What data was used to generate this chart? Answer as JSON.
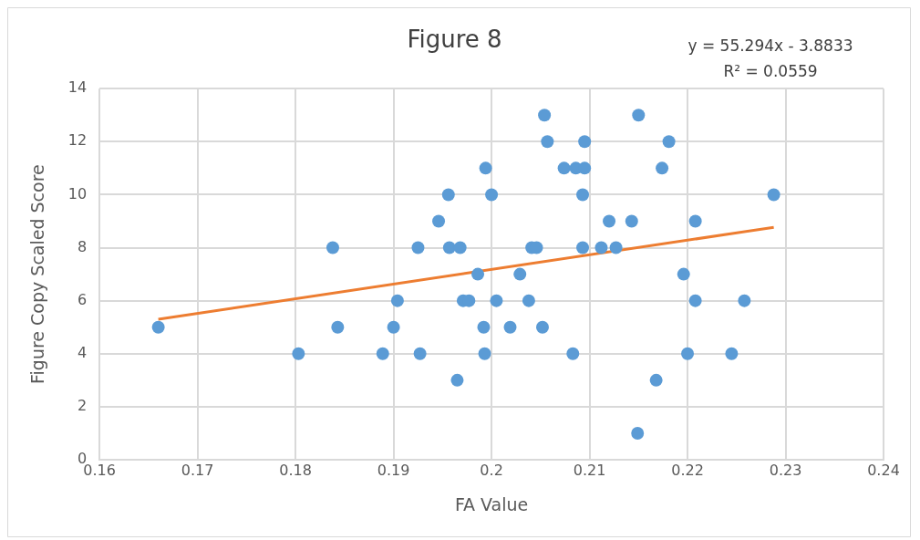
{
  "chart_data": {
    "type": "scatter",
    "title": "Figure 8",
    "xlabel": "FA Value",
    "ylabel": "Figure Copy Scaled Score",
    "xlim": [
      0.16,
      0.24
    ],
    "xticks": [
      0.16,
      0.17,
      0.18,
      0.19,
      0.2,
      0.21,
      0.22,
      0.23,
      0.24
    ],
    "ylim": [
      0,
      14
    ],
    "yticks": [
      0,
      2,
      4,
      6,
      8,
      10,
      12,
      14
    ],
    "grid": true,
    "annotations": [
      "y = 55.294x - 3.8833",
      "R² = 0.0559"
    ],
    "series": [
      {
        "marker": "circle",
        "color": "#5b9bd5",
        "x": [
          0.166,
          0.1803,
          0.1838,
          0.1843,
          0.1889,
          0.19,
          0.1904,
          0.1925,
          0.1927,
          0.1946,
          0.1956,
          0.1957,
          0.1968,
          0.1965,
          0.1971,
          0.1977,
          0.1986,
          0.1992,
          0.1993,
          0.1994,
          0.2,
          0.2005,
          0.2019,
          0.2029,
          0.2038,
          0.2041,
          0.2046,
          0.2052,
          0.2054,
          0.2057,
          0.2074,
          0.2083,
          0.2086,
          0.2095,
          0.2095,
          0.2093,
          0.2093,
          0.2112,
          0.212,
          0.2127,
          0.2143,
          0.215,
          0.2149,
          0.2181,
          0.2174,
          0.2208,
          0.2288,
          0.2196,
          0.2208,
          0.2258,
          0.22,
          0.2245,
          0.2168
        ],
        "values": [
          5,
          4,
          8,
          5,
          4,
          5,
          6,
          8,
          4,
          9,
          10,
          8,
          8,
          3,
          6,
          6,
          7,
          5,
          4,
          11,
          10,
          6,
          5,
          7,
          6,
          8,
          8,
          5,
          13,
          12,
          11,
          4,
          11,
          11,
          12,
          10,
          8,
          8,
          9,
          8,
          9,
          13,
          1,
          12,
          11,
          9,
          10,
          7,
          6,
          6,
          4,
          4,
          3
        ]
      },
      {
        "type": "line",
        "marker": "none",
        "color": "#ed7d31",
        "x": [
          0.166,
          0.2288
        ],
        "values": [
          5.3,
          8.77
        ]
      }
    ]
  }
}
